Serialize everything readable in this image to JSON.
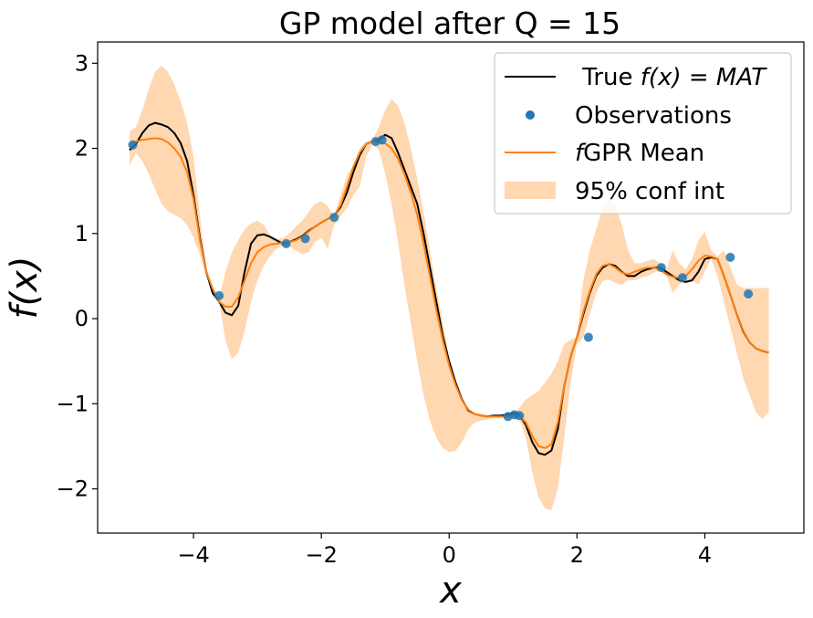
{
  "chart_data": {
    "type": "line",
    "title": "GP model after Q = 15",
    "xlabel": "x",
    "ylabel": "f(x)",
    "xlim": [
      -5.5,
      5.55
    ],
    "ylim": [
      -2.52,
      3.25
    ],
    "xticks": [
      -4,
      -2,
      0,
      2,
      4
    ],
    "yticks": [
      -2,
      -1,
      0,
      1,
      2,
      3
    ],
    "xtick_labels": [
      "−4",
      "−2",
      "0",
      "2",
      "4"
    ],
    "ytick_labels": [
      "−2",
      "−1",
      "0",
      "1",
      "2",
      "3"
    ],
    "legend": {
      "position": "top-right",
      "entries": [
        {
          "label_plain": " True ",
          "label_math": "f(x) = MAT",
          "kind": "line"
        },
        {
          "label_plain": "Observations",
          "kind": "marker"
        },
        {
          "label_math": "f",
          "label_plain": "GPR Mean",
          "kind": "line"
        },
        {
          "label_plain": "95% conf int",
          "kind": "patch"
        }
      ]
    },
    "colors": {
      "true": "#000000",
      "mean": "#ff7f0e",
      "band": "#ffd7b0",
      "observations": "#1f77b4"
    },
    "series": [
      {
        "name": "True f(x) = MAT",
        "x": [
          -5.0,
          -4.9,
          -4.8,
          -4.7,
          -4.6,
          -4.5,
          -4.4,
          -4.3,
          -4.2,
          -4.1,
          -4.0,
          -3.9,
          -3.8,
          -3.7,
          -3.6,
          -3.5,
          -3.4,
          -3.3,
          -3.2,
          -3.1,
          -3.0,
          -2.9,
          -2.8,
          -2.7,
          -2.6,
          -2.5,
          -2.4,
          -2.3,
          -2.2,
          -2.1,
          -2.0,
          -1.9,
          -1.8,
          -1.7,
          -1.6,
          -1.5,
          -1.4,
          -1.3,
          -1.2,
          -1.1,
          -1.0,
          -0.9,
          -0.8,
          -0.7,
          -0.6,
          -0.5,
          -0.4,
          -0.3,
          -0.2,
          -0.1,
          0.0,
          0.1,
          0.2,
          0.3,
          0.4,
          0.5,
          0.6,
          0.7,
          0.8,
          0.9,
          1.0,
          1.1,
          1.2,
          1.3,
          1.4,
          1.5,
          1.6,
          1.7,
          1.8,
          1.9,
          2.0,
          2.1,
          2.2,
          2.3,
          2.4,
          2.5,
          2.6,
          2.7,
          2.8,
          2.9,
          3.0,
          3.1,
          3.2,
          3.3,
          3.4,
          3.5,
          3.6,
          3.7,
          3.8,
          3.9,
          4.0,
          4.1,
          4.2,
          4.3,
          4.4,
          4.5,
          4.6,
          4.7,
          4.8,
          4.9,
          5.0
        ],
        "y": [
          1.98,
          2.05,
          2.18,
          2.27,
          2.3,
          2.28,
          2.25,
          2.18,
          2.06,
          1.85,
          1.45,
          0.95,
          0.55,
          0.3,
          0.2,
          0.07,
          0.04,
          0.15,
          0.55,
          0.88,
          0.98,
          0.99,
          0.96,
          0.92,
          0.88,
          0.9,
          0.93,
          0.97,
          1.03,
          1.08,
          1.13,
          1.17,
          1.21,
          1.31,
          1.48,
          1.72,
          1.92,
          2.05,
          2.08,
          2.1,
          2.16,
          2.12,
          1.95,
          1.75,
          1.55,
          1.35,
          1.0,
          0.6,
          0.2,
          -0.2,
          -0.5,
          -0.75,
          -0.95,
          -1.08,
          -1.12,
          -1.14,
          -1.15,
          -1.14,
          -1.14,
          -1.13,
          -1.11,
          -1.13,
          -1.25,
          -1.45,
          -1.58,
          -1.6,
          -1.55,
          -1.3,
          -0.8,
          -0.45,
          -0.22,
          0.05,
          0.3,
          0.5,
          0.6,
          0.64,
          0.62,
          0.55,
          0.5,
          0.5,
          0.55,
          0.58,
          0.6,
          0.6,
          0.55,
          0.5,
          0.45,
          0.43,
          0.45,
          0.55,
          0.7,
          0.72,
          0.7,
          0.5,
          0.28,
          0.05,
          -0.15,
          -0.28,
          -0.35,
          -0.38,
          -0.4
        ]
      },
      {
        "name": "fGPR Mean",
        "x": [
          -5.0,
          -4.9,
          -4.8,
          -4.7,
          -4.6,
          -4.5,
          -4.4,
          -4.3,
          -4.2,
          -4.1,
          -4.0,
          -3.9,
          -3.8,
          -3.7,
          -3.6,
          -3.5,
          -3.4,
          -3.3,
          -3.2,
          -3.1,
          -3.0,
          -2.9,
          -2.8,
          -2.7,
          -2.6,
          -2.5,
          -2.4,
          -2.3,
          -2.2,
          -2.1,
          -2.0,
          -1.9,
          -1.8,
          -1.7,
          -1.6,
          -1.5,
          -1.4,
          -1.3,
          -1.2,
          -1.1,
          -1.0,
          -0.9,
          -0.8,
          -0.7,
          -0.6,
          -0.5,
          -0.4,
          -0.3,
          -0.2,
          -0.1,
          0.0,
          0.1,
          0.2,
          0.3,
          0.4,
          0.5,
          0.6,
          0.7,
          0.8,
          0.9,
          1.0,
          1.1,
          1.2,
          1.3,
          1.4,
          1.5,
          1.6,
          1.7,
          1.8,
          1.9,
          2.0,
          2.1,
          2.2,
          2.3,
          2.4,
          2.5,
          2.6,
          2.7,
          2.8,
          2.9,
          3.0,
          3.1,
          3.2,
          3.3,
          3.4,
          3.5,
          3.6,
          3.7,
          3.8,
          3.9,
          4.0,
          4.1,
          4.2,
          4.3,
          4.4,
          4.5,
          4.6,
          4.7,
          4.8,
          4.9,
          5.0
        ],
        "y": [
          2.04,
          2.08,
          2.1,
          2.11,
          2.12,
          2.11,
          2.07,
          2.0,
          1.9,
          1.72,
          1.4,
          0.92,
          0.55,
          0.35,
          0.2,
          0.14,
          0.14,
          0.25,
          0.45,
          0.65,
          0.78,
          0.84,
          0.87,
          0.88,
          0.89,
          0.9,
          0.92,
          0.96,
          1.02,
          1.08,
          1.13,
          1.17,
          1.21,
          1.33,
          1.55,
          1.78,
          1.95,
          2.05,
          2.08,
          2.08,
          2.06,
          2.0,
          1.88,
          1.7,
          1.48,
          1.22,
          0.88,
          0.5,
          0.1,
          -0.25,
          -0.55,
          -0.78,
          -0.96,
          -1.07,
          -1.12,
          -1.14,
          -1.15,
          -1.15,
          -1.15,
          -1.15,
          -1.14,
          -1.14,
          -1.22,
          -1.38,
          -1.5,
          -1.52,
          -1.48,
          -1.22,
          -0.8,
          -0.45,
          -0.22,
          0.08,
          0.32,
          0.52,
          0.62,
          0.64,
          0.6,
          0.54,
          0.52,
          0.55,
          0.58,
          0.6,
          0.6,
          0.58,
          0.52,
          0.49,
          0.48,
          0.5,
          0.58,
          0.68,
          0.74,
          0.73,
          0.7,
          0.5,
          0.28,
          0.05,
          -0.14,
          -0.28,
          -0.35,
          -0.38,
          -0.4
        ]
      },
      {
        "name": "95% conf int",
        "x": [
          -5.0,
          -4.9,
          -4.8,
          -4.7,
          -4.6,
          -4.5,
          -4.4,
          -4.3,
          -4.2,
          -4.1,
          -4.0,
          -3.9,
          -3.8,
          -3.7,
          -3.6,
          -3.5,
          -3.4,
          -3.3,
          -3.2,
          -3.1,
          -3.0,
          -2.9,
          -2.8,
          -2.7,
          -2.6,
          -2.5,
          -2.4,
          -2.3,
          -2.2,
          -2.1,
          -2.0,
          -1.9,
          -1.8,
          -1.7,
          -1.6,
          -1.5,
          -1.4,
          -1.3,
          -1.2,
          -1.1,
          -1.0,
          -0.9,
          -0.8,
          -0.7,
          -0.6,
          -0.5,
          -0.4,
          -0.3,
          -0.2,
          -0.1,
          0.0,
          0.1,
          0.2,
          0.3,
          0.4,
          0.5,
          0.6,
          0.7,
          0.8,
          0.9,
          1.0,
          1.1,
          1.2,
          1.3,
          1.4,
          1.5,
          1.6,
          1.7,
          1.8,
          1.9,
          2.0,
          2.1,
          2.2,
          2.3,
          2.4,
          2.5,
          2.6,
          2.7,
          2.8,
          2.9,
          3.0,
          3.1,
          3.2,
          3.3,
          3.4,
          3.5,
          3.6,
          3.7,
          3.8,
          3.9,
          4.0,
          4.1,
          4.2,
          4.3,
          4.4,
          4.5,
          4.6,
          4.7,
          4.8,
          4.9,
          5.0
        ],
        "lower": [
          1.8,
          1.95,
          1.85,
          1.7,
          1.52,
          1.35,
          1.26,
          1.22,
          1.18,
          1.1,
          0.95,
          0.75,
          0.5,
          0.32,
          0.2,
          -0.25,
          -0.48,
          -0.4,
          -0.15,
          0.2,
          0.45,
          0.62,
          0.74,
          0.82,
          0.86,
          0.85,
          0.8,
          0.76,
          0.78,
          0.9,
          0.95,
          0.82,
          1.1,
          1.2,
          1.3,
          1.45,
          1.55,
          1.9,
          2.05,
          1.98,
          1.7,
          1.35,
          0.9,
          0.4,
          -0.05,
          -0.5,
          -0.9,
          -1.2,
          -1.4,
          -1.52,
          -1.57,
          -1.55,
          -1.45,
          -1.3,
          -1.22,
          -1.2,
          -1.18,
          -1.17,
          -1.17,
          -1.16,
          -1.15,
          -1.18,
          -1.4,
          -1.8,
          -2.1,
          -2.23,
          -2.25,
          -2.0,
          -1.4,
          -0.75,
          -0.3,
          -0.22,
          0.05,
          0.3,
          0.44,
          0.46,
          0.42,
          0.4,
          0.45,
          0.45,
          0.48,
          0.5,
          0.54,
          0.56,
          0.5,
          0.3,
          0.4,
          0.45,
          0.45,
          0.4,
          0.55,
          0.7,
          0.5,
          0.2,
          -0.1,
          -0.4,
          -0.7,
          -0.9,
          -1.1,
          -1.18,
          -1.1
        ]
      }
    ],
    "band_upper": [
      2.2,
      2.25,
      2.45,
      2.7,
      2.9,
      2.97,
      2.9,
      2.75,
      2.55,
      2.3,
      1.9,
      1.2,
      0.6,
      0.35,
      0.25,
      0.55,
      0.78,
      0.92,
      1.05,
      1.12,
      1.15,
      1.1,
      0.98,
      0.93,
      0.95,
      1.0,
      1.08,
      1.15,
      1.25,
      1.35,
      1.38,
      1.32,
      1.2,
      1.45,
      1.68,
      1.8,
      2.0,
      2.08,
      2.1,
      2.25,
      2.45,
      2.58,
      2.5,
      2.3,
      2.0,
      1.65,
      1.25,
      0.8,
      0.35,
      -0.05,
      -0.45,
      -0.78,
      -0.98,
      -1.1,
      -1.12,
      -1.12,
      -1.13,
      -1.13,
      -1.13,
      -1.13,
      -1.12,
      -1.05,
      -0.95,
      -0.9,
      -0.85,
      -0.75,
      -0.65,
      -0.5,
      -0.3,
      -0.25,
      -0.22,
      0.45,
      0.8,
      1.05,
      1.3,
      1.42,
      1.35,
      1.1,
      0.8,
      0.65,
      0.65,
      0.68,
      0.7,
      0.65,
      0.58,
      0.8,
      0.65,
      0.58,
      0.7,
      0.92,
      1.02,
      0.8,
      0.73,
      0.8,
      0.6,
      0.4,
      0.36,
      0.36,
      0.36,
      0.36,
      0.36
    ],
    "observations": {
      "x": [
        -4.95,
        -3.6,
        -2.55,
        -2.25,
        -1.8,
        -1.15,
        -1.05,
        0.92,
        1.02,
        1.1,
        2.18,
        3.32,
        3.65,
        4.4,
        4.68
      ],
      "y": [
        2.04,
        0.27,
        0.88,
        0.94,
        1.19,
        2.08,
        2.1,
        -1.15,
        -1.13,
        -1.14,
        -0.22,
        0.6,
        0.48,
        0.72,
        0.29
      ]
    }
  }
}
